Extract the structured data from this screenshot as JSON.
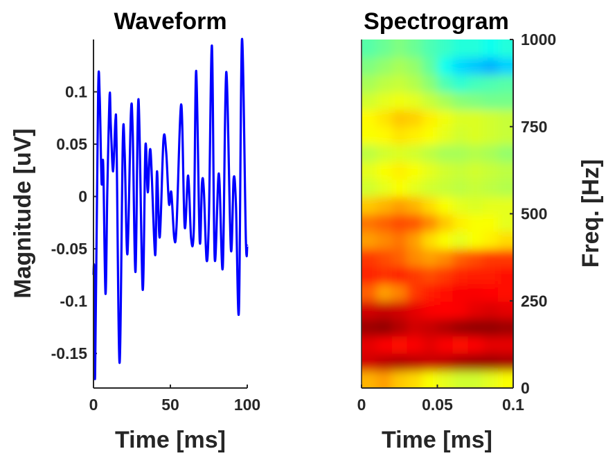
{
  "chart_data": [
    {
      "type": "line",
      "title": "Waveform",
      "xlabel": "Time [ms]",
      "ylabel": "Magnitude [uV]",
      "xlim": [
        0,
        100
      ],
      "ylim": [
        -0.183,
        0.15
      ],
      "xticks": [
        0,
        50,
        100
      ],
      "xtick_labels": [
        "0",
        "50",
        "100"
      ],
      "yticks": [
        0.1,
        0.05,
        0,
        -0.05,
        -0.1,
        -0.15
      ],
      "ytick_labels": [
        "0.1",
        "0.05",
        "0",
        "-0.05",
        "-0.1",
        "-0.15"
      ],
      "grid": false,
      "color": "#0000ff",
      "x": [
        0,
        0.45,
        1.05,
        3.0,
        4.05,
        5.26,
        6.31,
        7.81,
        9.0,
        10.5,
        11.26,
        12.76,
        14.26,
        15.0,
        16.97,
        19.07,
        20.27,
        22.07,
        24.32,
        25.5,
        27.33,
        29.28,
        31.98,
        33.78,
        35.3,
        37.09,
        40.09,
        41.29,
        43.09,
        45.5,
        47.3,
        49.1,
        50.6,
        52.55,
        54.05,
        57.06,
        59.31,
        61.56,
        63.5,
        65.3,
        66.8,
        69.07,
        70.57,
        71.77,
        73.57,
        75.08,
        77.03,
        78.83,
        81.53,
        84.08,
        86.34,
        89.34,
        91.14,
        92.64,
        94.6,
        96.55,
        99.1,
        100
      ],
      "y": [
        -0.075,
        -0.071,
        -0.17,
        0.097,
        0.095,
        0.013,
        0.031,
        -0.093,
        0.006,
        0.097,
        0.068,
        0.024,
        0.073,
        0.051,
        -0.159,
        0.053,
        0.042,
        -0.055,
        0.079,
        0.062,
        -0.072,
        0.093,
        -0.089,
        0.048,
        0.004,
        0.044,
        -0.056,
        0.024,
        -0.039,
        0.054,
        0.042,
        -0.007,
        0.004,
        -0.04,
        -0.027,
        0.088,
        -0.029,
        0.02,
        -0.04,
        -0.029,
        0.12,
        -0.042,
        0.013,
        0.006,
        -0.061,
        -0.019,
        0.144,
        -0.059,
        0.022,
        -0.068,
        0.119,
        -0.05,
        0.017,
        -0.007,
        -0.109,
        0.15,
        -0.041,
        -0.047
      ]
    },
    {
      "type": "heatmap",
      "title": "Spectrogram",
      "xlabel": "Time [ms]",
      "ylabel": "Freq. [Hz]",
      "xlim": [
        0,
        0.1
      ],
      "ylim": [
        0,
        1000
      ],
      "xticks": [
        0,
        0.05,
        0.1
      ],
      "xtick_labels": [
        "0",
        "0.05",
        "0.1"
      ],
      "yticks": [
        0,
        250,
        500,
        750,
        1000
      ],
      "ytick_labels": [
        "0",
        "250",
        "500",
        "750",
        "1000"
      ],
      "y_axis_location": "right",
      "colormap": "jet",
      "freq_bin_hz": 50,
      "time_bins": 10,
      "power_normalized": [
        [
          0.7,
          0.72,
          0.68,
          0.66,
          0.62,
          0.6,
          0.58,
          0.58,
          0.6,
          0.62
        ],
        [
          0.92,
          0.94,
          0.95,
          0.94,
          0.93,
          0.94,
          0.96,
          0.97,
          0.97,
          0.96
        ],
        [
          0.9,
          0.88,
          0.86,
          0.88,
          0.9,
          0.88,
          0.86,
          0.88,
          0.9,
          0.9
        ],
        [
          0.97,
          0.98,
          0.95,
          0.92,
          0.93,
          0.95,
          0.97,
          0.98,
          0.98,
          0.97
        ],
        [
          0.92,
          0.93,
          0.92,
          0.9,
          0.88,
          0.87,
          0.88,
          0.9,
          0.91,
          0.9
        ],
        [
          0.78,
          0.72,
          0.75,
          0.82,
          0.85,
          0.86,
          0.88,
          0.88,
          0.87,
          0.86
        ],
        [
          0.84,
          0.83,
          0.84,
          0.82,
          0.8,
          0.82,
          0.84,
          0.85,
          0.85,
          0.86
        ],
        [
          0.82,
          0.8,
          0.78,
          0.74,
          0.72,
          0.74,
          0.78,
          0.8,
          0.82,
          0.82
        ],
        [
          0.72,
          0.74,
          0.76,
          0.72,
          0.66,
          0.62,
          0.6,
          0.62,
          0.64,
          0.66
        ],
        [
          0.76,
          0.78,
          0.8,
          0.79,
          0.74,
          0.68,
          0.64,
          0.62,
          0.62,
          0.6
        ],
        [
          0.68,
          0.7,
          0.72,
          0.7,
          0.66,
          0.62,
          0.6,
          0.59,
          0.6,
          0.6
        ],
        [
          0.58,
          0.6,
          0.62,
          0.6,
          0.58,
          0.57,
          0.56,
          0.57,
          0.56,
          0.55
        ],
        [
          0.6,
          0.62,
          0.64,
          0.62,
          0.6,
          0.58,
          0.57,
          0.58,
          0.57,
          0.56
        ],
        [
          0.56,
          0.58,
          0.59,
          0.58,
          0.56,
          0.54,
          0.54,
          0.55,
          0.54,
          0.52
        ],
        [
          0.62,
          0.63,
          0.65,
          0.64,
          0.62,
          0.6,
          0.58,
          0.59,
          0.58,
          0.57
        ],
        [
          0.63,
          0.65,
          0.68,
          0.67,
          0.64,
          0.61,
          0.59,
          0.59,
          0.58,
          0.57
        ],
        [
          0.58,
          0.6,
          0.61,
          0.6,
          0.57,
          0.54,
          0.51,
          0.5,
          0.49,
          0.49
        ],
        [
          0.54,
          0.56,
          0.57,
          0.55,
          0.51,
          0.45,
          0.42,
          0.44,
          0.45,
          0.46
        ],
        [
          0.5,
          0.52,
          0.54,
          0.52,
          0.47,
          0.39,
          0.34,
          0.32,
          0.3,
          0.33
        ],
        [
          0.46,
          0.48,
          0.5,
          0.48,
          0.45,
          0.43,
          0.41,
          0.41,
          0.39,
          0.41
        ]
      ]
    }
  ]
}
